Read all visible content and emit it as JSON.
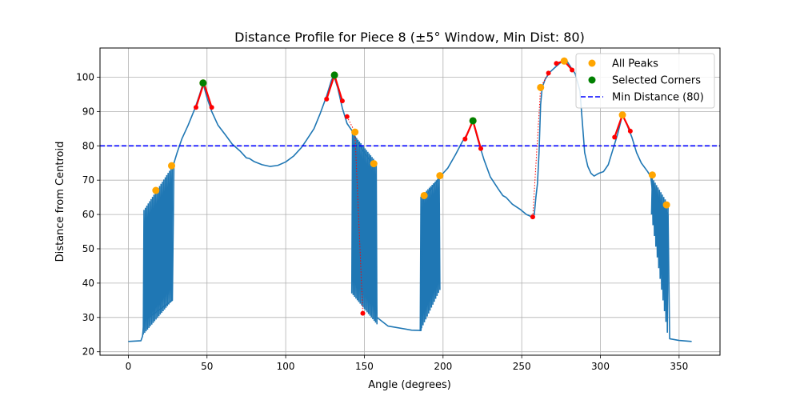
{
  "chart_data": {
    "type": "line",
    "title": "Distance Profile for Piece 8 (±5° Window, Min Dist: 80)",
    "xlabel": "Angle (degrees)",
    "ylabel": "Distance from Centroid",
    "xlim": [
      -18,
      376
    ],
    "ylim": [
      19,
      108.5
    ],
    "xticks": [
      0,
      50,
      100,
      150,
      200,
      250,
      300,
      350
    ],
    "yticks": [
      20,
      30,
      40,
      50,
      60,
      70,
      80,
      90,
      100
    ],
    "grid": true,
    "legend_position": "top-right",
    "colors": {
      "profile": "#1f77b4",
      "all_peaks": "#ffa500",
      "selected_corners": "#008000",
      "min_distance": "#0000ff",
      "corner_window": "#ff0000"
    },
    "legend": [
      {
        "label": "All Peaks",
        "kind": "marker",
        "color": "#ffa500"
      },
      {
        "label": "Selected Corners",
        "kind": "marker",
        "color": "#008000"
      },
      {
        "label": "Min Distance (80)",
        "kind": "dashed-line",
        "color": "#0000ff"
      }
    ],
    "min_distance": 80,
    "profile": {
      "smooth": [
        [
          0,
          23
        ],
        [
          8,
          23.2
        ],
        [
          9,
          24.5
        ],
        [
          10,
          29
        ],
        [
          28,
          35
        ],
        [
          29,
          75
        ],
        [
          31,
          78
        ],
        [
          34,
          82
        ],
        [
          38,
          86
        ],
        [
          42,
          90.5
        ],
        [
          45,
          94.5
        ],
        [
          47.5,
          98.2
        ],
        [
          50,
          94
        ],
        [
          53,
          90
        ],
        [
          57,
          86
        ],
        [
          62,
          83
        ],
        [
          66,
          80.5
        ],
        [
          71,
          78.5
        ],
        [
          75,
          76.5
        ],
        [
          77,
          76.3
        ],
        [
          80,
          75.4
        ],
        [
          85,
          74.5
        ],
        [
          90,
          74
        ],
        [
          95,
          74.3
        ],
        [
          100,
          75.3
        ],
        [
          105,
          77
        ],
        [
          110,
          79.5
        ],
        [
          113,
          81.5
        ],
        [
          118,
          85
        ],
        [
          122,
          89.5
        ],
        [
          126,
          94.5
        ],
        [
          129,
          99
        ],
        [
          130.5,
          100.5
        ],
        [
          133,
          97
        ],
        [
          136,
          91
        ],
        [
          139,
          86.5
        ],
        [
          142,
          84.5
        ],
        [
          146,
          81
        ],
        [
          150,
          78
        ],
        [
          155,
          75
        ],
        [
          158,
          30
        ],
        [
          165,
          27.5
        ],
        [
          180,
          26.3
        ],
        [
          186,
          26.2
        ],
        [
          187,
          64
        ],
        [
          198,
          71
        ],
        [
          203,
          73.5
        ],
        [
          208,
          77.5
        ],
        [
          212,
          81
        ],
        [
          216,
          84
        ],
        [
          219,
          87.2
        ],
        [
          222,
          82
        ],
        [
          226,
          76
        ],
        [
          230,
          71
        ],
        [
          235,
          67.5
        ],
        [
          238,
          65.5
        ],
        [
          240,
          65
        ],
        [
          244,
          63
        ],
        [
          249,
          61.5
        ],
        [
          253,
          60
        ],
        [
          255.5,
          59.5
        ],
        [
          257,
          59
        ],
        [
          258,
          60
        ],
        [
          259,
          65
        ],
        [
          260,
          69
        ],
        [
          261,
          78
        ],
        [
          262,
          92
        ],
        [
          263,
          97
        ],
        [
          265,
          99.5
        ],
        [
          268,
          101.5
        ],
        [
          272,
          103.2
        ],
        [
          276,
          104.7
        ],
        [
          279,
          104.5
        ],
        [
          281,
          103
        ],
        [
          284,
          101
        ],
        [
          287,
          96
        ],
        [
          289,
          84
        ],
        [
          290,
          78
        ],
        [
          292,
          74
        ],
        [
          294,
          72
        ],
        [
          296,
          71.2
        ],
        [
          299,
          72
        ],
        [
          302,
          72.5
        ],
        [
          305,
          74.5
        ],
        [
          308,
          79
        ],
        [
          311,
          83.5
        ],
        [
          314,
          89
        ],
        [
          317,
          86
        ],
        [
          320,
          82.5
        ],
        [
          323,
          78
        ],
        [
          326,
          75
        ],
        [
          330,
          72.5
        ],
        [
          332,
          71
        ],
        [
          333,
          67
        ],
        [
          343,
          60
        ],
        [
          344,
          23.8
        ],
        [
          350,
          23.3
        ],
        [
          358,
          23
        ]
      ],
      "oscillation_bands": [
        {
          "x_start": 9.5,
          "x_end": 28,
          "low_start": 25,
          "low_end": 35,
          "high_start": 61,
          "high_end": 74
        },
        {
          "x_start": 142,
          "x_end": 158,
          "low_start": 37,
          "low_end": 28,
          "high_start": 84,
          "high_end": 75
        },
        {
          "x_start": 185.5,
          "x_end": 198,
          "low_start": 26,
          "low_end": 38,
          "high_start": 65,
          "high_end": 71
        },
        {
          "x_start": 332.5,
          "x_end": 343,
          "low_start": 60,
          "low_end": 24,
          "high_start": 71,
          "high_end": 63
        }
      ]
    },
    "all_peaks": [
      [
        17.5,
        67
      ],
      [
        27.5,
        74.2
      ],
      [
        47.5,
        98.3
      ],
      [
        131,
        100.6
      ],
      [
        144,
        84
      ],
      [
        156,
        74.8
      ],
      [
        188,
        65.5
      ],
      [
        198,
        71.3
      ],
      [
        219,
        87.3
      ],
      [
        262,
        97
      ],
      [
        277,
        104.7
      ],
      [
        314,
        89
      ],
      [
        333,
        71.5
      ],
      [
        342,
        62.8
      ]
    ],
    "selected_corners": [
      [
        47.5,
        98.3
      ],
      [
        131,
        100.6
      ],
      [
        219,
        87.3
      ]
    ],
    "corner_windows": [
      {
        "points": [
          [
            43,
            91.2
          ],
          [
            48,
            98.3
          ],
          [
            53,
            91.2
          ]
        ],
        "style": "solid"
      },
      {
        "points": [
          [
            126,
            93.6
          ],
          [
            131,
            100.6
          ],
          [
            136,
            93.1
          ]
        ],
        "style": "solid"
      },
      {
        "points": [
          [
            139,
            88.5
          ],
          [
            144,
            84
          ],
          [
            149,
            31.2
          ]
        ],
        "style": "dotted"
      },
      {
        "points": [
          [
            214,
            82
          ],
          [
            219,
            87.3
          ],
          [
            224,
            79.2
          ]
        ],
        "style": "solid"
      },
      {
        "points": [
          [
            257,
            59.3
          ],
          [
            262,
            97
          ],
          [
            267,
            101.2
          ]
        ],
        "style": "dotted"
      },
      {
        "points": [
          [
            272,
            104
          ],
          [
            277,
            104.7
          ],
          [
            282,
            102.1
          ]
        ],
        "style": "solid"
      },
      {
        "points": [
          [
            309,
            82.5
          ],
          [
            314,
            89
          ],
          [
            319,
            84.3
          ]
        ],
        "style": "solid"
      }
    ]
  }
}
